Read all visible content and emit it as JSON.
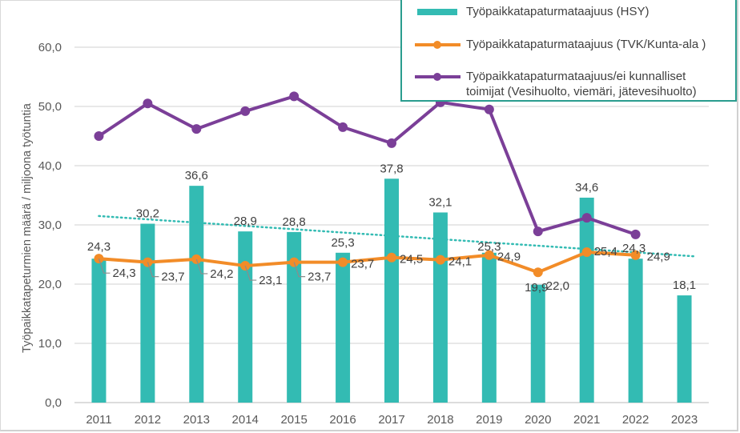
{
  "chart_data": {
    "type": "bar",
    "title": "",
    "xlabel": "",
    "ylabel": "Työpaikkatapeturmien  määrä / miljoona työtuntia",
    "ylim": [
      0,
      60
    ],
    "yticks": [
      "0,0",
      "10,0",
      "20,0",
      "30,0",
      "40,0",
      "50,0",
      "60,0"
    ],
    "ytick_values": [
      0,
      10,
      20,
      30,
      40,
      50,
      60
    ],
    "grid": true,
    "legend_position": "top-right",
    "categories": [
      "2011",
      "2012",
      "2013",
      "2014",
      "2015",
      "2016",
      "2017",
      "2018",
      "2019",
      "2020",
      "2021",
      "2022",
      "2023"
    ],
    "series": [
      {
        "name": "Työpaikkatapaturmataajuus (HSY)",
        "kind": "bar",
        "color": "#33bbb3",
        "values": [
          24.3,
          30.2,
          36.6,
          28.9,
          28.8,
          25.3,
          37.8,
          32.1,
          25.3,
          19.9,
          34.6,
          24.3,
          18.1
        ],
        "labels": [
          "24,3",
          "30,2",
          "36,6",
          "28,9",
          "28,8",
          "25,3",
          "37,8",
          "32,1",
          "25,3",
          "19,9",
          "34,6",
          "24,3",
          "18,1"
        ]
      },
      {
        "name": "Työpaikkatapaturmataajuus (TVK/Kunta-ala )",
        "kind": "line",
        "color": "#f28c28",
        "values": [
          24.3,
          23.7,
          24.2,
          23.1,
          23.7,
          23.7,
          24.5,
          24.1,
          24.9,
          22.0,
          25.4,
          24.9,
          null
        ],
        "labels": [
          "24,3",
          "23,7",
          "24,2",
          "23,1",
          "23,7",
          "23,7",
          "24,5",
          "24,1",
          "24,9",
          "22,0",
          "25,4",
          "24,9",
          null
        ]
      },
      {
        "name": "Työpaikkatapaturmataajuus/ei kunnalliset toimijat (Vesihuolto, viemäri, jätevesihuolto)",
        "kind": "line",
        "color": "#7b3f98",
        "values": [
          45.0,
          50.5,
          46.2,
          49.2,
          51.7,
          46.5,
          43.8,
          50.7,
          49.5,
          28.9,
          31.2,
          28.4,
          null
        ]
      },
      {
        "name": "Trendline (HSY)",
        "kind": "trend",
        "color": "#33bbb3",
        "start": 31.5,
        "end": 24.7
      }
    ]
  },
  "legend": {
    "items": [
      {
        "label": "Työpaikkatapaturmataajuus (HSY)"
      },
      {
        "label": "Työpaikkatapaturmataajuus (TVK/Kunta-ala )"
      },
      {
        "label_line1": "Työpaikkatapaturmataajuus/ei kunnalliset",
        "label_line2": "toimijat (Vesihuolto, viemäri, jätevesihuolto)"
      }
    ]
  }
}
